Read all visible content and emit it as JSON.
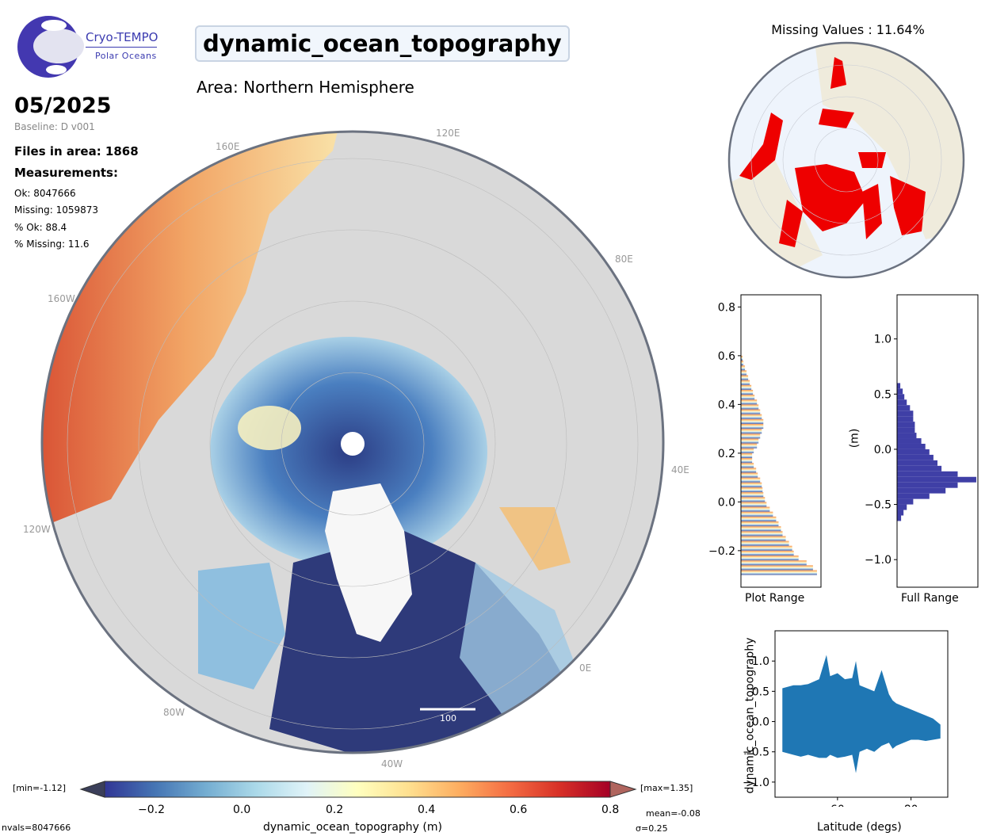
{
  "logo": {
    "name": "Cryo-TEMPO",
    "subtitle": "Polar Oceans"
  },
  "title": "dynamic_ocean_topography",
  "area": "Area: Northern Hemisphere",
  "date": "05/2025",
  "baseline": "Baseline: D v001",
  "files_in_area": "Files in area: 1868",
  "measurements_heading": "Measurements:",
  "stats": {
    "ok": "Ok: 8047666",
    "missing": "Missing: 1059873",
    "pct_ok": "% Ok: 88.4",
    "pct_missing": "% Missing: 11.6"
  },
  "map": {
    "longitude_labels": [
      "160E",
      "120E",
      "80E",
      "160W",
      "40E",
      "120W",
      "0E",
      "80W",
      "40W"
    ],
    "scale_bar_label": "100",
    "colors": {
      "land": "#dcdcdc",
      "ice_sheet": "#f7f7f7",
      "ocean_low": "#2c3a7c",
      "ocean_high": "#d84a2a"
    }
  },
  "colorbar": {
    "min_label": "[min=-1.12]",
    "max_label": "[max=1.35]",
    "ticks": [
      "−0.2",
      "0.0",
      "0.2",
      "0.4",
      "0.6",
      "0.8"
    ],
    "label": "dynamic_ocean_topography (m)",
    "colormap": "RdYlBu_r",
    "range": [
      -0.3,
      0.8
    ]
  },
  "footer": {
    "nvals": "nvals=8047666",
    "mean": "mean=-0.08",
    "sigma": "σ=0.25"
  },
  "missing_map": {
    "title": "Missing Values : 11.64%",
    "missing_color": "#ee0000",
    "land_color": "#efebdc",
    "ocean_color": "#eef4fc"
  },
  "chart_data": [
    {
      "type": "bar",
      "title": "",
      "xlabel": "Plot Range",
      "ylabel": "",
      "orientation": "horizontal-histogram",
      "ylim": [
        -0.35,
        0.85
      ],
      "yticks": [
        "−0.2",
        "0.0",
        "0.2",
        "0.4",
        "0.6",
        "0.8"
      ],
      "bins": [
        -0.3,
        -0.28,
        -0.26,
        -0.24,
        -0.22,
        -0.2,
        -0.18,
        -0.16,
        -0.14,
        -0.12,
        -0.1,
        -0.08,
        -0.06,
        -0.04,
        -0.02,
        0.0,
        0.02,
        0.04,
        0.06,
        0.08,
        0.1,
        0.12,
        0.14,
        0.16,
        0.18,
        0.2,
        0.22,
        0.24,
        0.26,
        0.28,
        0.3,
        0.32,
        0.34,
        0.36,
        0.38,
        0.4,
        0.42,
        0.44,
        0.46,
        0.48,
        0.5,
        0.52,
        0.54,
        0.56,
        0.58
      ],
      "values": [
        0.95,
        0.9,
        0.82,
        0.72,
        0.66,
        0.64,
        0.6,
        0.56,
        0.52,
        0.5,
        0.47,
        0.44,
        0.4,
        0.36,
        0.32,
        0.3,
        0.28,
        0.27,
        0.26,
        0.24,
        0.21,
        0.19,
        0.16,
        0.14,
        0.14,
        0.16,
        0.2,
        0.22,
        0.24,
        0.26,
        0.28,
        0.28,
        0.26,
        0.24,
        0.22,
        0.2,
        0.17,
        0.15,
        0.13,
        0.11,
        0.09,
        0.07,
        0.05,
        0.03,
        0.02
      ]
    },
    {
      "type": "bar",
      "title": "",
      "xlabel": "Full Range",
      "ylabel": "(m)",
      "orientation": "horizontal-histogram",
      "ylim": [
        -1.25,
        1.4
      ],
      "yticks": [
        "−1.0",
        "−0.5",
        "0.0",
        "0.5",
        "1.0"
      ],
      "bins": [
        -0.65,
        -0.6,
        -0.55,
        -0.5,
        -0.45,
        -0.4,
        -0.35,
        -0.3,
        -0.25,
        -0.2,
        -0.15,
        -0.1,
        -0.05,
        0.0,
        0.05,
        0.1,
        0.15,
        0.2,
        0.25,
        0.3,
        0.35,
        0.4,
        0.45,
        0.5,
        0.55
      ],
      "values": [
        0.05,
        0.08,
        0.12,
        0.2,
        0.4,
        0.6,
        0.75,
        0.98,
        0.75,
        0.55,
        0.5,
        0.45,
        0.4,
        0.35,
        0.3,
        0.24,
        0.22,
        0.22,
        0.2,
        0.2,
        0.16,
        0.12,
        0.09,
        0.07,
        0.04
      ]
    },
    {
      "type": "scatter",
      "title": "",
      "xlabel": "Latitude (degs)",
      "ylabel": "dynamic_ocean_topography",
      "xlim": [
        43,
        90
      ],
      "ylim": [
        -1.25,
        1.5
      ],
      "xticks": [
        "60",
        "80"
      ],
      "yticks": [
        "−1.0",
        "−0.5",
        "0.0",
        "0.5",
        "1.0"
      ],
      "series": [
        {
          "x": [
            45,
            48,
            50,
            52,
            55,
            57,
            58,
            60,
            62,
            64,
            65,
            66,
            68,
            70,
            72,
            74,
            75,
            76,
            78,
            80,
            82,
            84,
            86,
            88
          ],
          "upper": [
            0.55,
            0.6,
            0.6,
            0.62,
            0.7,
            1.1,
            0.75,
            0.8,
            0.7,
            0.72,
            1.0,
            0.6,
            0.55,
            0.5,
            0.85,
            0.45,
            0.35,
            0.3,
            0.25,
            0.2,
            0.15,
            0.1,
            0.05,
            -0.05
          ],
          "lower": [
            -0.5,
            -0.55,
            -0.58,
            -0.55,
            -0.6,
            -0.6,
            -0.55,
            -0.6,
            -0.58,
            -0.55,
            -0.85,
            -0.5,
            -0.45,
            -0.5,
            -0.4,
            -0.35,
            -0.45,
            -0.4,
            -0.35,
            -0.3,
            -0.3,
            -0.32,
            -0.3,
            -0.28
          ]
        }
      ]
    }
  ]
}
